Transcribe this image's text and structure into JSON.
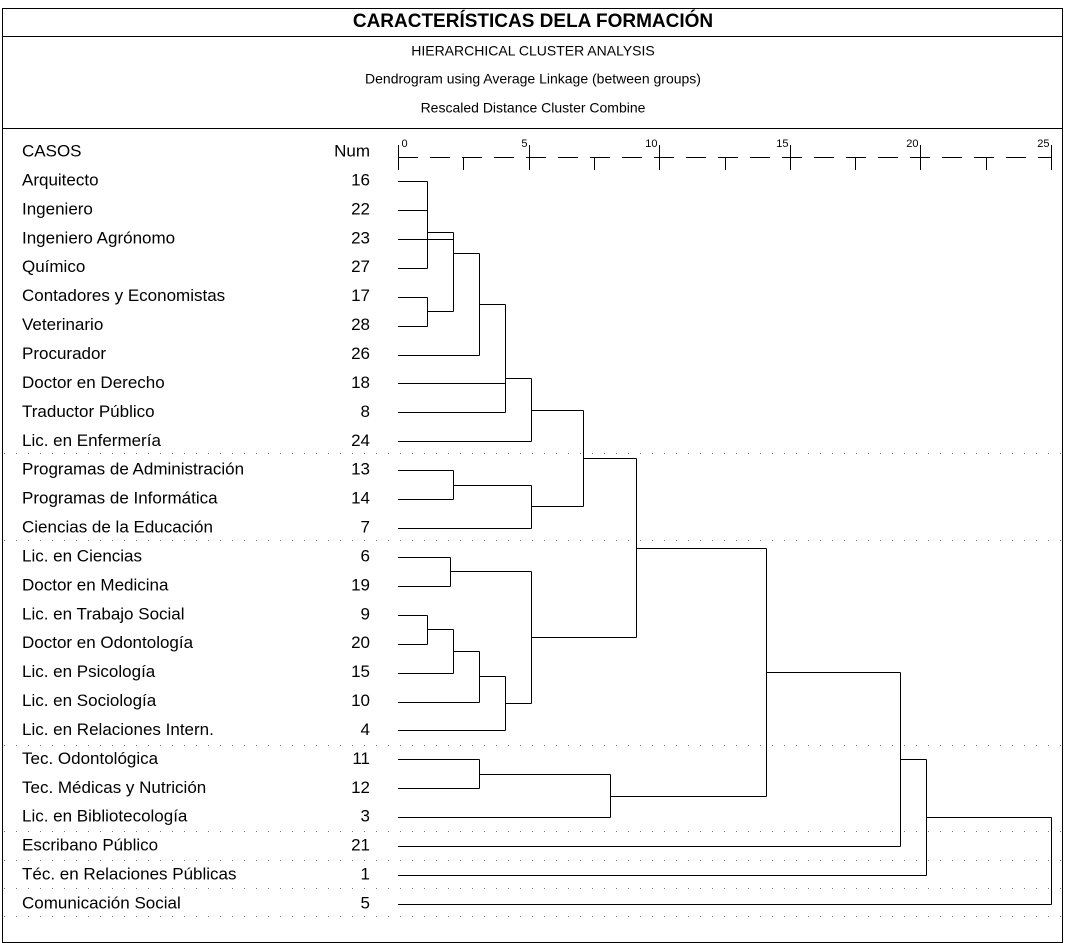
{
  "chart_data": {
    "type": "dendrogram",
    "title": "CARACTERÍSTICAS DELA FORMACIÓN",
    "subtitles": [
      "HIERARCHICAL CLUSTER ANALYSIS",
      "Dendrogram using Average Linkage (between groups)",
      "Rescaled Distance Cluster Combine"
    ],
    "row_header": "CASOS",
    "num_header": "Num",
    "categories": [
      "Arquitecto",
      "Ingeniero",
      "Ingeniero Agrónomo",
      "Químico",
      "Contadores y Economistas",
      "Veterinario",
      "Procurador",
      "Doctor en Derecho",
      "Traductor Público",
      "Lic. en Enfermería",
      "Programas de Administración",
      "Programas de Informática",
      "Ciencias de la Educación",
      "Lic. en Ciencias",
      "Doctor en Medicina",
      "Lic. en Trabajo Social",
      "Doctor en Odontología",
      "Lic. en Psicología",
      "Lic. en Sociología",
      "Lic. en Relaciones Intern.",
      "Tec. Odontológica",
      "Tec. Médicas y Nutrición",
      "Lic. en Bibliotecología",
      "Escribano Público",
      "Téc. en Relaciones Públicas",
      "Comunicación Social"
    ],
    "numbers": [
      16,
      22,
      23,
      27,
      17,
      28,
      26,
      18,
      8,
      24,
      13,
      14,
      7,
      6,
      19,
      9,
      20,
      15,
      10,
      4,
      11,
      12,
      3,
      21,
      1,
      5
    ],
    "merges": [
      {
        "a": 0,
        "b": 1,
        "distance": 1.1
      },
      {
        "a": 26,
        "b": 3,
        "distance": 1.1
      },
      {
        "a": 4,
        "b": 5,
        "distance": 1.1
      },
      {
        "a": 2,
        "b": 28,
        "distance": 2.1
      },
      {
        "a": 27,
        "b": 29,
        "distance": 2.1
      },
      {
        "a": 30,
        "b": 6,
        "distance": 3.1
      },
      {
        "a": 31,
        "b": 7,
        "distance": 4.1
      },
      {
        "a": 32,
        "b": 8,
        "distance": 4.1
      },
      {
        "a": 33,
        "b": 9,
        "distance": 5.1
      },
      {
        "a": 10,
        "b": 11,
        "distance": 2.1
      },
      {
        "a": 35,
        "b": 12,
        "distance": 5.1
      },
      {
        "a": 34,
        "b": 36,
        "distance": 7.1
      },
      {
        "a": 13,
        "b": 14,
        "distance": 2
      },
      {
        "a": 15,
        "b": 16,
        "distance": 1.1
      },
      {
        "a": 39,
        "b": 17,
        "distance": 2.1
      },
      {
        "a": 40,
        "b": 18,
        "distance": 3.1
      },
      {
        "a": 41,
        "b": 19,
        "distance": 4.1
      },
      {
        "a": 38,
        "b": 42,
        "distance": 5.1
      },
      {
        "a": 37,
        "b": 43,
        "distance": 9.1
      },
      {
        "a": 20,
        "b": 21,
        "distance": 3.1
      },
      {
        "a": 45,
        "b": 22,
        "distance": 8.1
      },
      {
        "a": 44,
        "b": 46,
        "distance": 14.1
      },
      {
        "a": 47,
        "b": 23,
        "distance": 19.2
      },
      {
        "a": 48,
        "b": 24,
        "distance": 20.2
      },
      {
        "a": 49,
        "b": 25,
        "distance": 25
      }
    ],
    "xlim": [
      0,
      25
    ],
    "xticks": [
      0,
      5,
      10,
      15,
      20,
      25
    ]
  }
}
